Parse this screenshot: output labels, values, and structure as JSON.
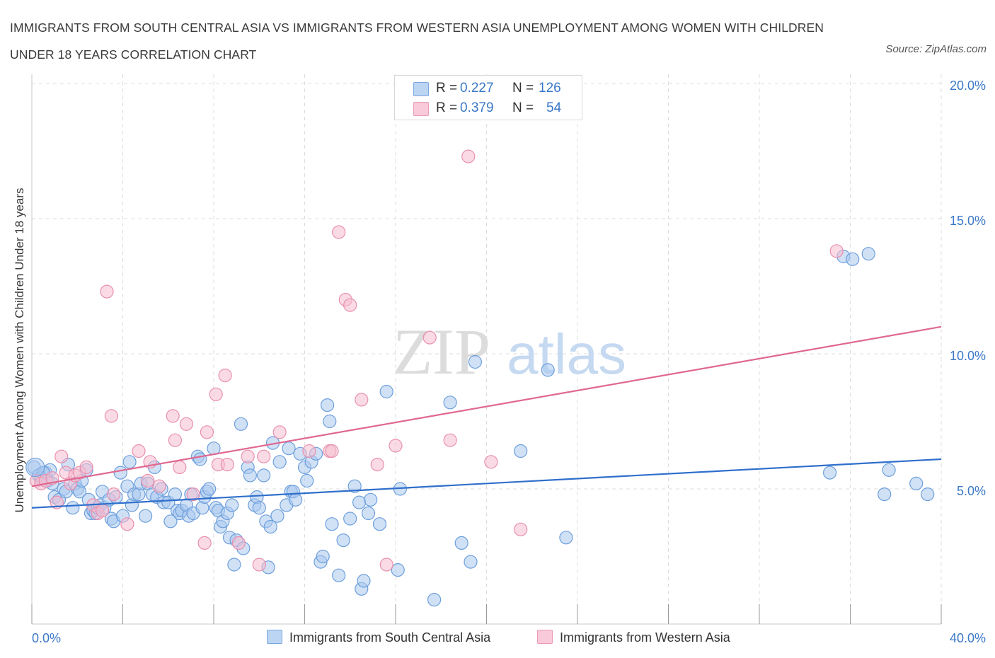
{
  "header": {
    "title": "IMMIGRANTS FROM SOUTH CENTRAL ASIA VS IMMIGRANTS FROM WESTERN ASIA UNEMPLOYMENT AMONG WOMEN WITH CHILDREN UNDER 18 YEARS CORRELATION CHART",
    "source": "Source: ZipAtlas.com"
  },
  "legend": {
    "rows": [
      {
        "r_label": "R =",
        "r_value": "0.227",
        "n_label": "N =",
        "n_value": "126"
      },
      {
        "r_label": "R =",
        "r_value": "0.379",
        "n_label": "N =",
        "n_value": "54"
      }
    ]
  },
  "colors": {
    "blue_fill": "#a9c8ef",
    "blue_stroke": "#6d9fdc",
    "blue_line": "#2f6fcc",
    "pink_fill": "#f6bed0",
    "pink_stroke": "#e98fae",
    "pink_line": "#e06890",
    "axis_text": "#3a78c8",
    "grid": "#dcdcdc"
  },
  "watermark": {
    "part1": "ZIP",
    "part2": "atlas"
  },
  "chart_data": {
    "type": "scatter",
    "title": "IMMIGRANTS FROM SOUTH CENTRAL ASIA VS IMMIGRANTS FROM WESTERN ASIA UNEMPLOYMENT AMONG WOMEN WITH CHILDREN UNDER 18 YEARS CORRELATION CHART",
    "xlabel": "",
    "ylabel": "Unemployment Among Women with Children Under 18 years",
    "xlim": [
      0,
      40
    ],
    "ylim": [
      0,
      20.5
    ],
    "x_tick_labels": [
      {
        "value": 0,
        "label": "0.0%"
      },
      {
        "value": 40,
        "label": "40.0%"
      }
    ],
    "y_tick_labels": [
      {
        "value": 5,
        "label": "5.0%"
      },
      {
        "value": 10,
        "label": "10.0%"
      },
      {
        "value": 15,
        "label": "15.0%"
      },
      {
        "value": 20,
        "label": "20.0%"
      }
    ],
    "grid": true,
    "legend_position": "bottom",
    "series": [
      {
        "name": "Immigrants from South Central Asia",
        "color": "blue",
        "trend": {
          "x": [
            0,
            40
          ],
          "y": [
            4.3,
            6.1
          ]
        },
        "points": [
          [
            0.1,
            5.8
          ],
          [
            0.3,
            5.5
          ],
          [
            0.4,
            5.4
          ],
          [
            0.6,
            5.6
          ],
          [
            0.7,
            5.3
          ],
          [
            0.8,
            5.7
          ],
          [
            0.9,
            5.2
          ],
          [
            1.0,
            4.7
          ],
          [
            1.2,
            4.6
          ],
          [
            1.4,
            5.0
          ],
          [
            1.5,
            4.9
          ],
          [
            1.6,
            5.9
          ],
          [
            1.8,
            4.3
          ],
          [
            1.9,
            5.2
          ],
          [
            2.0,
            5.0
          ],
          [
            2.1,
            4.9
          ],
          [
            2.2,
            5.3
          ],
          [
            2.4,
            5.7
          ],
          [
            2.5,
            4.6
          ],
          [
            2.6,
            4.1
          ],
          [
            2.7,
            4.2
          ],
          [
            2.8,
            4.1
          ],
          [
            2.9,
            4.3
          ],
          [
            3.0,
            4.4
          ],
          [
            3.1,
            4.9
          ],
          [
            3.2,
            4.3
          ],
          [
            3.4,
            4.6
          ],
          [
            3.5,
            3.9
          ],
          [
            3.6,
            3.8
          ],
          [
            3.7,
            4.7
          ],
          [
            3.9,
            5.6
          ],
          [
            4.0,
            4.0
          ],
          [
            4.2,
            5.1
          ],
          [
            4.3,
            6.0
          ],
          [
            4.4,
            4.4
          ],
          [
            4.5,
            4.8
          ],
          [
            4.7,
            4.8
          ],
          [
            4.8,
            5.2
          ],
          [
            5.0,
            4.0
          ],
          [
            5.1,
            5.2
          ],
          [
            5.3,
            4.8
          ],
          [
            5.4,
            5.8
          ],
          [
            5.5,
            4.7
          ],
          [
            5.7,
            5.0
          ],
          [
            5.8,
            4.5
          ],
          [
            6.0,
            4.5
          ],
          [
            6.1,
            3.8
          ],
          [
            6.3,
            4.8
          ],
          [
            6.4,
            4.2
          ],
          [
            6.5,
            4.1
          ],
          [
            6.6,
            4.2
          ],
          [
            6.8,
            4.4
          ],
          [
            6.9,
            4.0
          ],
          [
            7.0,
            4.8
          ],
          [
            7.1,
            4.1
          ],
          [
            7.3,
            6.2
          ],
          [
            7.4,
            6.1
          ],
          [
            7.5,
            4.3
          ],
          [
            7.6,
            4.7
          ],
          [
            7.7,
            4.9
          ],
          [
            7.8,
            5.0
          ],
          [
            8.0,
            6.5
          ],
          [
            8.1,
            4.3
          ],
          [
            8.2,
            4.2
          ],
          [
            8.3,
            3.6
          ],
          [
            8.4,
            3.8
          ],
          [
            8.6,
            4.1
          ],
          [
            8.7,
            3.2
          ],
          [
            8.8,
            4.4
          ],
          [
            8.9,
            2.2
          ],
          [
            9.0,
            3.1
          ],
          [
            9.2,
            7.4
          ],
          [
            9.3,
            2.8
          ],
          [
            9.5,
            5.8
          ],
          [
            9.6,
            5.5
          ],
          [
            9.8,
            4.4
          ],
          [
            9.9,
            4.7
          ],
          [
            10.0,
            4.3
          ],
          [
            10.2,
            5.5
          ],
          [
            10.3,
            3.8
          ],
          [
            10.4,
            2.1
          ],
          [
            10.5,
            3.6
          ],
          [
            10.6,
            6.7
          ],
          [
            10.8,
            4.0
          ],
          [
            10.9,
            6.0
          ],
          [
            11.2,
            4.4
          ],
          [
            11.3,
            6.5
          ],
          [
            11.4,
            4.9
          ],
          [
            11.5,
            4.9
          ],
          [
            11.6,
            4.6
          ],
          [
            11.8,
            6.3
          ],
          [
            12.0,
            5.8
          ],
          [
            12.1,
            5.3
          ],
          [
            12.3,
            6.0
          ],
          [
            12.5,
            6.3
          ],
          [
            12.7,
            2.3
          ],
          [
            12.8,
            2.5
          ],
          [
            13.0,
            8.1
          ],
          [
            13.1,
            7.5
          ],
          [
            13.2,
            3.7
          ],
          [
            13.5,
            1.8
          ],
          [
            13.7,
            3.1
          ],
          [
            14.0,
            3.9
          ],
          [
            14.2,
            5.1
          ],
          [
            14.4,
            4.5
          ],
          [
            14.5,
            1.3
          ],
          [
            14.6,
            1.6
          ],
          [
            14.8,
            4.1
          ],
          [
            14.9,
            4.6
          ],
          [
            15.3,
            3.7
          ],
          [
            15.6,
            8.6
          ],
          [
            16.1,
            2.0
          ],
          [
            16.2,
            5.0
          ],
          [
            17.7,
            0.9
          ],
          [
            18.4,
            8.2
          ],
          [
            18.9,
            3.0
          ],
          [
            19.3,
            2.3
          ],
          [
            19.5,
            9.7
          ],
          [
            21.5,
            6.4
          ],
          [
            22.7,
            9.4
          ],
          [
            23.5,
            3.2
          ],
          [
            35.1,
            5.6
          ],
          [
            35.7,
            13.6
          ],
          [
            36.1,
            13.5
          ],
          [
            36.8,
            13.7
          ],
          [
            37.5,
            4.8
          ],
          [
            37.7,
            5.7
          ],
          [
            38.9,
            5.2
          ],
          [
            39.4,
            4.8
          ],
          [
            0.5,
            5.6
          ]
        ]
      },
      {
        "name": "Immigrants from Western Asia",
        "color": "pink",
        "trend": {
          "x": [
            0,
            40
          ],
          "y": [
            5.1,
            11.0
          ]
        },
        "points": [
          [
            0.2,
            5.3
          ],
          [
            0.4,
            5.2
          ],
          [
            0.6,
            5.3
          ],
          [
            0.9,
            5.4
          ],
          [
            1.1,
            4.5
          ],
          [
            1.3,
            6.2
          ],
          [
            1.5,
            5.6
          ],
          [
            1.7,
            5.2
          ],
          [
            1.9,
            5.5
          ],
          [
            2.1,
            5.6
          ],
          [
            2.4,
            5.8
          ],
          [
            2.7,
            4.4
          ],
          [
            2.9,
            4.1
          ],
          [
            3.1,
            4.2
          ],
          [
            3.3,
            12.3
          ],
          [
            3.5,
            7.7
          ],
          [
            3.6,
            4.8
          ],
          [
            4.2,
            3.7
          ],
          [
            4.7,
            6.4
          ],
          [
            5.1,
            5.3
          ],
          [
            5.2,
            6.0
          ],
          [
            5.6,
            5.1
          ],
          [
            6.2,
            7.7
          ],
          [
            6.3,
            6.8
          ],
          [
            6.5,
            5.8
          ],
          [
            6.8,
            7.4
          ],
          [
            7.1,
            4.8
          ],
          [
            7.6,
            3.0
          ],
          [
            7.7,
            7.1
          ],
          [
            8.1,
            8.5
          ],
          [
            8.2,
            5.9
          ],
          [
            8.5,
            9.2
          ],
          [
            8.6,
            5.9
          ],
          [
            9.1,
            3.0
          ],
          [
            9.5,
            6.2
          ],
          [
            10.0,
            2.2
          ],
          [
            10.2,
            6.2
          ],
          [
            10.9,
            7.1
          ],
          [
            12.2,
            6.4
          ],
          [
            13.1,
            6.4
          ],
          [
            13.2,
            6.4
          ],
          [
            13.5,
            14.5
          ],
          [
            13.8,
            12.0
          ],
          [
            14.0,
            11.8
          ],
          [
            14.5,
            8.3
          ],
          [
            15.2,
            5.9
          ],
          [
            15.6,
            2.2
          ],
          [
            16.0,
            6.6
          ],
          [
            17.5,
            10.6
          ],
          [
            18.4,
            6.8
          ],
          [
            19.2,
            17.3
          ],
          [
            20.2,
            6.0
          ],
          [
            21.5,
            3.5
          ],
          [
            35.4,
            13.8
          ]
        ]
      }
    ]
  },
  "bottom_legend": [
    {
      "label": "Immigrants from South Central Asia"
    },
    {
      "label": "Immigrants from Western Asia"
    }
  ]
}
